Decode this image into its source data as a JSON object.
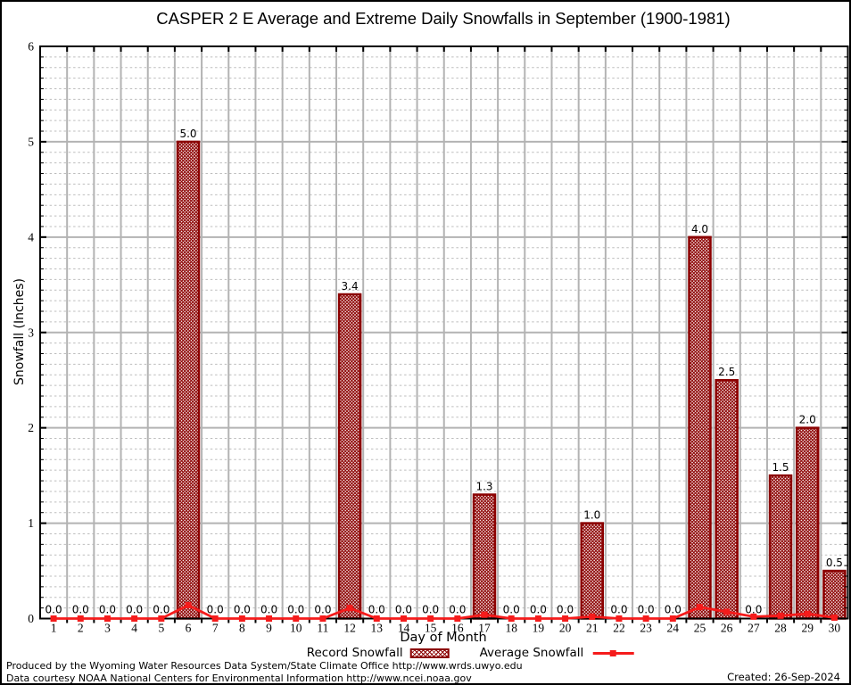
{
  "title": "CASPER 2 E Average and Extreme Daily Snowfalls in September (1900-1981)",
  "chart_data": {
    "type": "bar",
    "categories": [
      1,
      2,
      3,
      4,
      5,
      6,
      7,
      8,
      9,
      10,
      11,
      12,
      13,
      14,
      15,
      16,
      17,
      18,
      19,
      20,
      21,
      22,
      23,
      24,
      25,
      26,
      27,
      28,
      29,
      30
    ],
    "series": [
      {
        "name": "Record Snowfall",
        "type": "bar",
        "values": [
          0,
          0,
          0,
          0,
          0,
          5.0,
          0,
          0,
          0,
          0,
          0,
          3.4,
          0,
          0,
          0,
          0,
          1.3,
          0,
          0,
          0,
          1.0,
          0,
          0,
          0,
          4.0,
          2.5,
          0,
          1.5,
          2.0,
          0.5
        ],
        "labels": [
          "0.0",
          "0.0",
          "0.0",
          "0.0",
          "0.0",
          "5.0",
          "0.0",
          "0.0",
          "0.0",
          "0.0",
          "0.0",
          "3.4",
          "0.0",
          "0.0",
          "0.0",
          "0.0",
          "1.3",
          "0.0",
          "0.0",
          "0.0",
          "1.0",
          "0.0",
          "0.0",
          "0.0",
          "4.0",
          "2.5",
          "0.0",
          "1.5",
          "2.0",
          "0.5"
        ]
      },
      {
        "name": "Average Snowfall",
        "type": "line",
        "values": [
          0,
          0,
          0,
          0,
          0,
          0.14,
          0,
          0,
          0,
          0,
          0,
          0.11,
          0,
          0,
          0,
          0,
          0.04,
          0,
          0,
          0,
          0.02,
          0,
          0,
          0,
          0.12,
          0.07,
          0.02,
          0.03,
          0.05,
          0.01
        ]
      }
    ],
    "xlabel": "Day of Month",
    "ylabel": "Snowfall (Inches)",
    "ylim": [
      0,
      6
    ],
    "y_major_ticks": [
      "0",
      "1",
      "2",
      "3",
      "4",
      "5",
      "6"
    ],
    "y_minor_divisions_per_unit": 9,
    "grid": true,
    "legend_position": "bottom",
    "colors": {
      "bar": "#8b0000",
      "line": "#f51b1b",
      "grid_major": "#b3b3b3",
      "grid_minor": "#bdbdbd",
      "axis": "#000000"
    }
  },
  "footer": {
    "line1": "Produced by the Wyoming Water Resources Data System/State Climate Office http://www.wrds.uwyo.edu",
    "line2": "Data courtesy NOAA National Centers for Environmental Information http://www.ncei.noaa.gov",
    "created": "Created: 26-Sep-2024"
  }
}
